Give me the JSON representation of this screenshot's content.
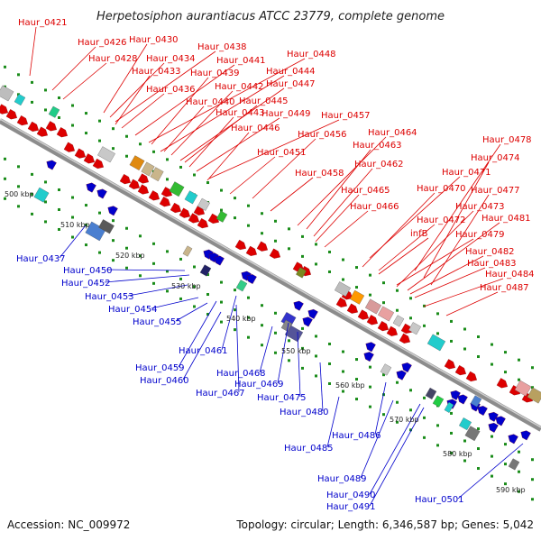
{
  "title": "Herpetosiphon aurantiacus ATCC 23779, complete genome",
  "footer": {
    "accession": "Accession: NC_009972",
    "topology": "Topology: circular; Length: 6,346,587 bp; Genes: 5,042"
  },
  "colors": {
    "forward": "#dd0000",
    "reverse": "#0000cc",
    "backbone": "#888888",
    "dots": "#1a8c1a"
  },
  "kbp_ticks": [
    "500 kbp",
    "510 kbp",
    "520 kbp",
    "530 kbp",
    "540 kbp",
    "550 kbp",
    "560 kbp",
    "570 kbp",
    "580 kbp",
    "590 kbp"
  ],
  "forward_labels": [
    "Haur_0421",
    "Haur_0426",
    "Haur_0430",
    "Haur_0428",
    "Haur_0434",
    "Haur_0438",
    "Haur_0433",
    "Haur_0441",
    "Haur_0448",
    "Haur_0439",
    "Haur_0444",
    "Haur_0436",
    "Haur_0442",
    "Haur_0447",
    "Haur_0440",
    "Haur_0445",
    "Haur_0443",
    "Haur_0449",
    "Haur_0457",
    "Haur_0446",
    "Haur_0456",
    "Haur_0464",
    "Haur_0463",
    "Haur_0478",
    "Haur_0451",
    "Haur_0462",
    "Haur_0474",
    "Haur_0458",
    "Haur_0471",
    "Haur_0477",
    "Haur_0465",
    "Haur_0470",
    "Haur_0466",
    "Haur_0473",
    "Haur_0472",
    "Haur_0481",
    "infB",
    "Haur_0479",
    "Haur_0482",
    "Haur_0483",
    "Haur_0484",
    "Haur_0487"
  ],
  "reverse_labels": [
    "Haur_0437",
    "Haur_0450",
    "Haur_0452",
    "Haur_0453",
    "Haur_0454",
    "Haur_0455",
    "Haur_0461",
    "Haur_0459",
    "Haur_0460",
    "Haur_0468",
    "Haur_0467",
    "Haur_0469",
    "Haur_0475",
    "Haur_0480",
    "Haur_0486",
    "Haur_0485",
    "Haur_0489",
    "Haur_0490",
    "Haur_0491",
    "Haur_0501"
  ]
}
